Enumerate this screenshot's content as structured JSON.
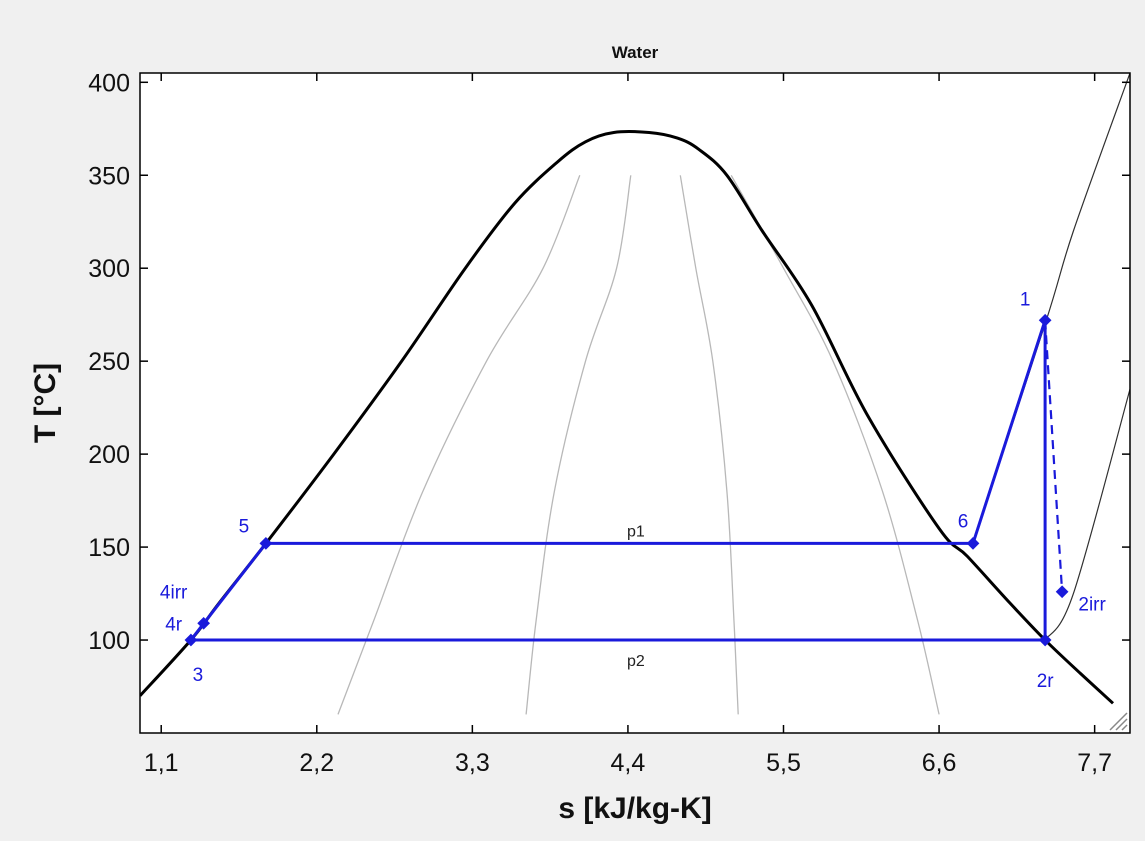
{
  "chart_data": {
    "type": "line",
    "title": "Water",
    "xlabel": "s [kJ/kg-K]",
    "ylabel": "T [°C]",
    "xlim": [
      0.95,
      7.95
    ],
    "ylim": [
      50,
      405
    ],
    "xticks": [
      "1,1",
      "2,2",
      "3,3",
      "4,4",
      "5,5",
      "6,6",
      "7,7"
    ],
    "yticks": [
      "100",
      "150",
      "200",
      "250",
      "300",
      "350",
      "400"
    ],
    "grid": false,
    "colors": {
      "dome": "#000000",
      "quality": "#b8b8b8",
      "isobar": "#303030",
      "cycle": "#1a1adb",
      "background": "#ffffff"
    },
    "series": [
      {
        "role": "saturation-dome",
        "x": [
          0.95,
          1.31,
          1.51,
          1.84,
          2.32,
          2.8,
          3.25,
          3.6,
          3.9,
          4.1,
          4.3,
          4.55,
          4.75,
          4.9,
          5.1,
          5.35,
          5.7,
          6.1,
          6.6,
          6.8,
          7.1,
          7.35,
          7.6,
          7.83
        ],
        "y": [
          70,
          100,
          120,
          152,
          200,
          250,
          300,
          335,
          357,
          368,
          373,
          373,
          370,
          364,
          350,
          320,
          280,
          220,
          160,
          145,
          120,
          100,
          82,
          66
        ]
      },
      {
        "role": "quality-lines",
        "lines": [
          {
            "x": [
              4.06,
              3.8,
              3.4,
              2.95,
              2.6,
              2.35
            ],
            "y": [
              350,
              300,
              250,
              180,
              110,
              60
            ]
          },
          {
            "x": [
              4.42,
              4.32,
              4.1,
              3.88,
              3.75,
              3.68
            ],
            "y": [
              350,
              300,
              250,
              180,
              110,
              60
            ]
          },
          {
            "x": [
              4.77,
              4.88,
              5.0,
              5.1,
              5.15,
              5.18
            ],
            "y": [
              350,
              300,
              250,
              180,
              110,
              60
            ]
          },
          {
            "x": [
              5.13,
              5.5,
              5.85,
              6.2,
              6.45,
              6.6
            ],
            "y": [
              350,
              300,
              250,
              180,
              110,
              60
            ]
          }
        ]
      },
      {
        "role": "isobar-p1-superheat",
        "x": [
          6.84,
          7.35,
          7.55,
          7.95
        ],
        "y": [
          152,
          270,
          320,
          405
        ]
      },
      {
        "role": "isobar-p2-superheat",
        "x": [
          7.35,
          7.55,
          7.95
        ],
        "y": [
          100,
          125,
          235
        ]
      },
      {
        "role": "cycle-solid",
        "segments": [
          {
            "x": [
              1.31,
              1.84
            ],
            "y": [
              100,
              152
            ]
          },
          {
            "x": [
              1.84,
              6.84
            ],
            "y": [
              152,
              152
            ]
          },
          {
            "x": [
              6.84,
              7.35
            ],
            "y": [
              152,
              272
            ]
          },
          {
            "x": [
              7.35,
              7.35
            ],
            "y": [
              272,
              100
            ]
          },
          {
            "x": [
              7.35,
              1.31
            ],
            "y": [
              100,
              100
            ]
          }
        ]
      },
      {
        "role": "cycle-dashed",
        "segments": [
          {
            "x": [
              7.35,
              7.47
            ],
            "y": [
              272,
              126
            ]
          },
          {
            "x": [
              1.31,
              1.4
            ],
            "y": [
              100,
              109
            ]
          }
        ]
      }
    ],
    "points": [
      {
        "label": "1",
        "x": 7.35,
        "y": 272
      },
      {
        "label": "2irr",
        "x": 7.47,
        "y": 126
      },
      {
        "label": "2r",
        "x": 7.35,
        "y": 100
      },
      {
        "label": "3",
        "x": 1.31,
        "y": 100
      },
      {
        "label": "4r",
        "x": 1.4,
        "y": 109
      },
      {
        "label": "4irr",
        "x": "",
        "y": ""
      },
      {
        "label": "5",
        "x": 1.84,
        "y": 152
      },
      {
        "label": "6",
        "x": 6.84,
        "y": 152
      }
    ],
    "line_labels": [
      {
        "text": "p1",
        "x": 4.4,
        "y": 152
      },
      {
        "text": "p2",
        "x": 4.4,
        "y": 100
      }
    ]
  }
}
